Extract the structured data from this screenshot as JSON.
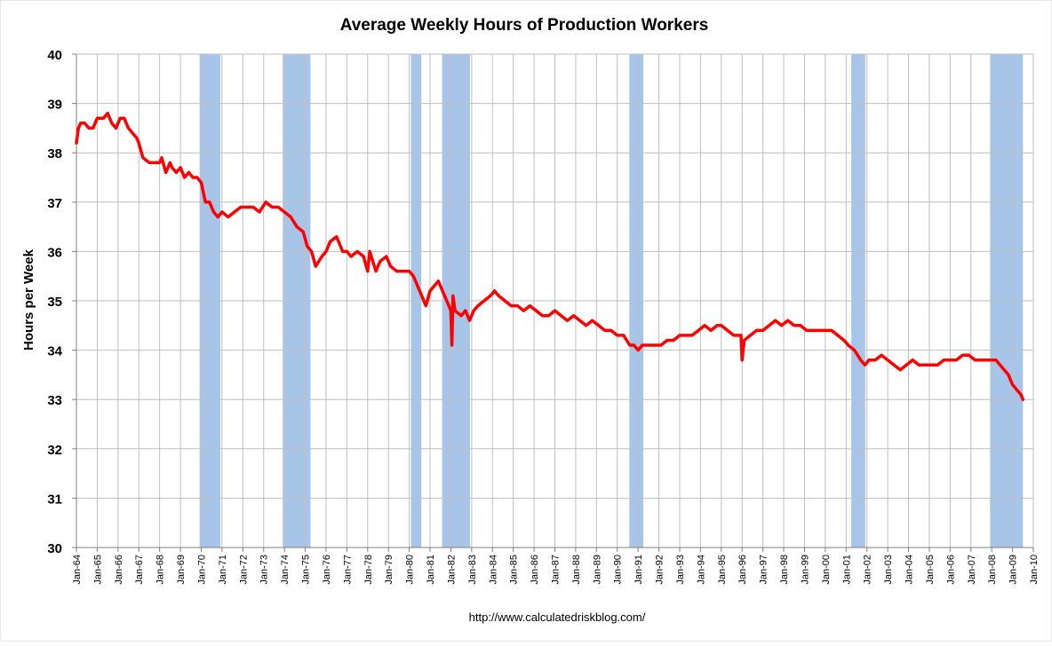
{
  "chart_data": {
    "type": "line",
    "title": "Average Weekly Hours of Production Workers",
    "xlabel": "",
    "ylabel": "Hours per Week",
    "source_text": "http://www.calculatedriskblog.com/",
    "ylim": [
      30,
      40
    ],
    "yticks": [
      30,
      31,
      32,
      33,
      34,
      35,
      36,
      37,
      38,
      39,
      40
    ],
    "xlim": [
      1964.0,
      2010.0
    ],
    "xtick_labels": [
      "Jan-64",
      "Jan-65",
      "Jan-66",
      "Jan-67",
      "Jan-68",
      "Jan-69",
      "Jan-70",
      "Jan-71",
      "Jan-72",
      "Jan-73",
      "Jan-74",
      "Jan-75",
      "Jan-76",
      "Jan-77",
      "Jan-78",
      "Jan-79",
      "Jan-80",
      "Jan-81",
      "Jan-82",
      "Jan-83",
      "Jan-84",
      "Jan-85",
      "Jan-86",
      "Jan-87",
      "Jan-88",
      "Jan-89",
      "Jan-90",
      "Jan-91",
      "Jan-92",
      "Jan-93",
      "Jan-94",
      "Jan-95",
      "Jan-96",
      "Jan-97",
      "Jan-98",
      "Jan-99",
      "Jan-00",
      "Jan-01",
      "Jan-02",
      "Jan-03",
      "Jan-04",
      "Jan-05",
      "Jan-06",
      "Jan-07",
      "Jan-08",
      "Jan-09",
      "Jan-10"
    ],
    "grid": true,
    "colors": {
      "line": "#ff0000",
      "recession": "#a7c4e9",
      "grid": "#bfbfbf",
      "axis": "#808080"
    },
    "recessions": [
      {
        "start": 1969.92,
        "end": 1970.92
      },
      {
        "start": 1973.92,
        "end": 1975.25
      },
      {
        "start": 1980.08,
        "end": 1980.58
      },
      {
        "start": 1981.58,
        "end": 1982.92
      },
      {
        "start": 1990.58,
        "end": 1991.25
      },
      {
        "start": 2001.25,
        "end": 2001.92
      },
      {
        "start": 2007.92,
        "end": 2009.5
      }
    ],
    "series": [
      {
        "x": [
          1964.0,
          1964.1,
          1964.2,
          1964.4,
          1964.6,
          1964.8,
          1965.0,
          1965.3,
          1965.5,
          1965.7,
          1965.9,
          1966.1,
          1966.3,
          1966.5,
          1966.7,
          1966.9,
          1967.0,
          1967.2,
          1967.5,
          1967.8,
          1968.0,
          1968.1,
          1968.3,
          1968.5,
          1968.6,
          1968.8,
          1969.0,
          1969.2,
          1969.4,
          1969.6,
          1969.8,
          1970.0,
          1970.2,
          1970.4,
          1970.6,
          1970.8,
          1971.0,
          1971.3,
          1971.6,
          1971.9,
          1972.2,
          1972.5,
          1972.8,
          1973.1,
          1973.4,
          1973.7,
          1974.0,
          1974.3,
          1974.6,
          1974.9,
          1975.1,
          1975.3,
          1975.5,
          1975.8,
          1976.0,
          1976.2,
          1976.5,
          1976.8,
          1977.0,
          1977.2,
          1977.5,
          1977.8,
          1978.0,
          1978.1,
          1978.4,
          1978.6,
          1978.9,
          1979.1,
          1979.4,
          1979.7,
          1980.0,
          1980.2,
          1980.4,
          1980.6,
          1980.8,
          1981.0,
          1981.2,
          1981.4,
          1981.6,
          1981.8,
          1982.0,
          1982.05,
          1982.1,
          1982.2,
          1982.5,
          1982.7,
          1982.9,
          1983.1,
          1983.3,
          1983.6,
          1983.9,
          1984.1,
          1984.3,
          1984.6,
          1984.9,
          1985.2,
          1985.5,
          1985.8,
          1986.1,
          1986.4,
          1986.7,
          1987.0,
          1987.3,
          1987.6,
          1987.9,
          1988.2,
          1988.5,
          1988.8,
          1989.1,
          1989.4,
          1989.7,
          1990.0,
          1990.3,
          1990.6,
          1990.8,
          1991.0,
          1991.2,
          1991.5,
          1991.8,
          1992.1,
          1992.4,
          1992.7,
          1993.0,
          1993.3,
          1993.6,
          1993.9,
          1994.2,
          1994.5,
          1994.8,
          1995.0,
          1995.3,
          1995.6,
          1995.8,
          1995.95,
          1996.0,
          1996.1,
          1996.4,
          1996.7,
          1997.0,
          1997.3,
          1997.6,
          1997.9,
          1998.2,
          1998.5,
          1998.8,
          1999.1,
          1999.4,
          1999.7,
          2000.0,
          2000.3,
          2000.6,
          2000.9,
          2001.1,
          2001.4,
          2001.7,
          2001.9,
          2002.1,
          2002.4,
          2002.7,
          2003.0,
          2003.3,
          2003.6,
          2003.9,
          2004.2,
          2004.5,
          2004.8,
          2005.1,
          2005.4,
          2005.7,
          2006.0,
          2006.3,
          2006.6,
          2006.9,
          2007.2,
          2007.5,
          2007.8,
          2008.0,
          2008.2,
          2008.4,
          2008.6,
          2008.8,
          2009.0,
          2009.2,
          2009.4,
          2009.5
        ],
        "y": [
          38.2,
          38.5,
          38.6,
          38.6,
          38.5,
          38.5,
          38.7,
          38.7,
          38.8,
          38.6,
          38.5,
          38.7,
          38.7,
          38.5,
          38.4,
          38.3,
          38.2,
          37.9,
          37.8,
          37.8,
          37.8,
          37.9,
          37.6,
          37.8,
          37.7,
          37.6,
          37.7,
          37.5,
          37.6,
          37.5,
          37.5,
          37.4,
          37.0,
          37.0,
          36.8,
          36.7,
          36.8,
          36.7,
          36.8,
          36.9,
          36.9,
          36.9,
          36.8,
          37.0,
          36.9,
          36.9,
          36.8,
          36.7,
          36.5,
          36.4,
          36.1,
          36.0,
          35.7,
          35.9,
          36.0,
          36.2,
          36.3,
          36.0,
          36.0,
          35.9,
          36.0,
          35.9,
          35.6,
          36.0,
          35.6,
          35.8,
          35.9,
          35.7,
          35.6,
          35.6,
          35.6,
          35.5,
          35.3,
          35.1,
          34.9,
          35.2,
          35.3,
          35.4,
          35.2,
          35.0,
          34.8,
          34.1,
          35.1,
          34.8,
          34.7,
          34.8,
          34.6,
          34.8,
          34.9,
          35.0,
          35.1,
          35.2,
          35.1,
          35.0,
          34.9,
          34.9,
          34.8,
          34.9,
          34.8,
          34.7,
          34.7,
          34.8,
          34.7,
          34.6,
          34.7,
          34.6,
          34.5,
          34.6,
          34.5,
          34.4,
          34.4,
          34.3,
          34.3,
          34.1,
          34.1,
          34.0,
          34.1,
          34.1,
          34.1,
          34.1,
          34.2,
          34.2,
          34.3,
          34.3,
          34.3,
          34.4,
          34.5,
          34.4,
          34.5,
          34.5,
          34.4,
          34.3,
          34.3,
          34.3,
          33.8,
          34.2,
          34.3,
          34.4,
          34.4,
          34.5,
          34.6,
          34.5,
          34.6,
          34.5,
          34.5,
          34.4,
          34.4,
          34.4,
          34.4,
          34.4,
          34.3,
          34.2,
          34.1,
          34.0,
          33.8,
          33.7,
          33.8,
          33.8,
          33.9,
          33.8,
          33.7,
          33.6,
          33.7,
          33.8,
          33.7,
          33.7,
          33.7,
          33.7,
          33.8,
          33.8,
          33.8,
          33.9,
          33.9,
          33.8,
          33.8,
          33.8,
          33.8,
          33.8,
          33.7,
          33.6,
          33.5,
          33.3,
          33.2,
          33.1,
          33.0
        ]
      }
    ]
  }
}
